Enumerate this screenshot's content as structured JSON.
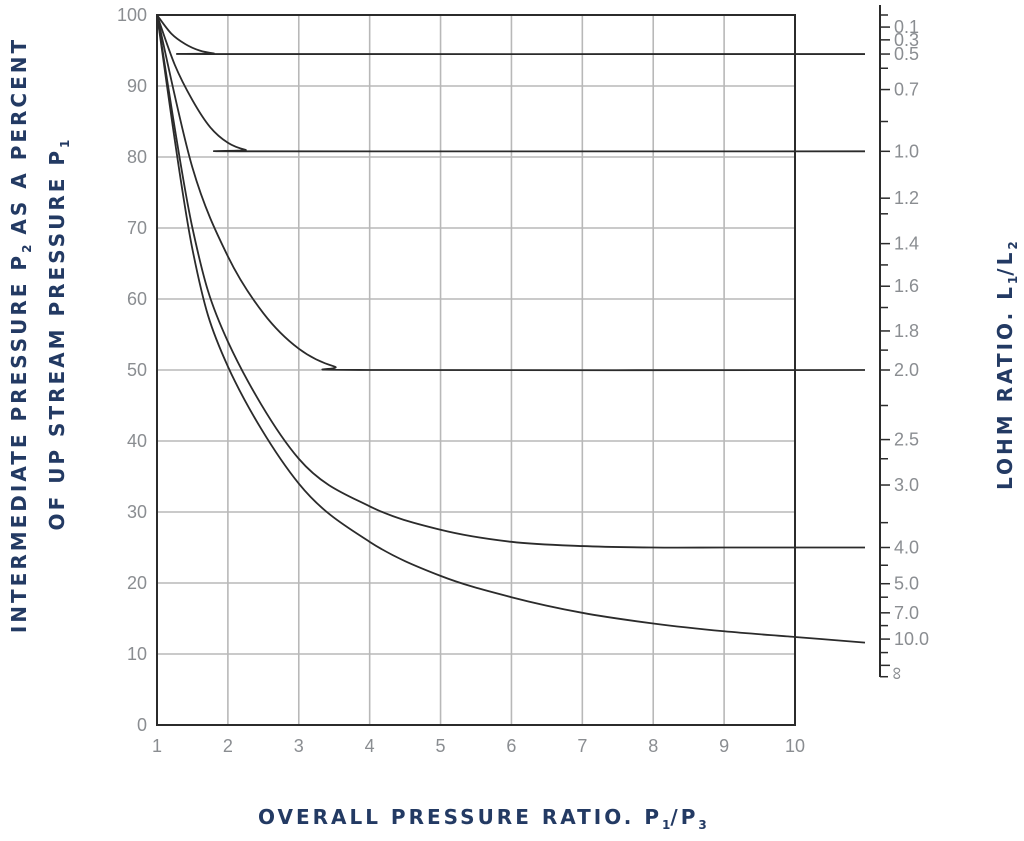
{
  "chart_data": {
    "type": "line",
    "x_ticks": [
      "1",
      "2",
      "3",
      "4",
      "5",
      "6",
      "7",
      "8",
      "9",
      "10"
    ],
    "y_ticks": [
      "0",
      "10",
      "20",
      "30",
      "40",
      "50",
      "60",
      "70",
      "80",
      "90",
      "100"
    ],
    "xlim": [
      1,
      10
    ],
    "ylim": [
      0,
      100
    ],
    "grid": true,
    "xlabel": {
      "main": "OVERALL PRESSURE RATIO. P",
      "s1": "1",
      "mid": "/P",
      "s2": "3"
    },
    "ylabel": {
      "line1_a": "INTERMEDIATE PRESSURE P",
      "line1_s": "2",
      "line1_b": " AS A PERCENT",
      "line2_a": "OF UP STREAM PRESSURE P",
      "line2_s": "1"
    },
    "y2label": {
      "main": "LOHM RATIO. L",
      "s1": "1",
      "mid": "/L",
      "s2": "2"
    },
    "right_axis_labels": [
      {
        "label": "0.1",
        "y": 98.3
      },
      {
        "label": "0.3",
        "y": 96.5
      },
      {
        "label": "0.5",
        "y": 94.5
      },
      {
        "label": "0.7",
        "y": 89.5
      },
      {
        "label": "1.0",
        "y": 80.8
      },
      {
        "label": "1.2",
        "y": 74.2
      },
      {
        "label": "1.4",
        "y": 67.8
      },
      {
        "label": "1.6",
        "y": 61.8
      },
      {
        "label": "1.8",
        "y": 55.5
      },
      {
        "label": "2.0",
        "y": 50
      },
      {
        "label": "2.5",
        "y": 40.2
      },
      {
        "label": "3.0",
        "y": 33.8
      },
      {
        "label": "4.0",
        "y": 25
      },
      {
        "label": "5.0",
        "y": 19.9
      },
      {
        "label": "7.0",
        "y": 15.8
      },
      {
        "label": "10.0",
        "y": 12.1
      },
      {
        "label": "∞",
        "y": 8.4
      }
    ],
    "right_axis_minor_ticks": [
      100,
      92.5,
      85,
      72,
      64.8,
      58.8,
      52.8,
      45,
      37.5,
      28.5,
      22.5,
      18,
      14,
      10.2,
      6.8
    ],
    "series": [
      {
        "lohm_ratio": "0.5",
        "x": [
          1,
          1.2,
          1.4,
          1.6,
          1.8,
          2,
          11
        ],
        "y": [
          100,
          97.4,
          95.9,
          95.0,
          94.6,
          94.5,
          94.5
        ]
      },
      {
        "lohm_ratio": "1.0",
        "x": [
          1,
          1.25,
          1.5,
          1.75,
          2,
          2.25,
          2.5,
          11
        ],
        "y": [
          100,
          93.0,
          88.0,
          84.2,
          82.0,
          81.0,
          80.8,
          80.8
        ]
      },
      {
        "lohm_ratio": "2.0",
        "x": [
          1,
          1.5,
          2,
          2.5,
          3,
          3.5,
          4,
          11
        ],
        "y": [
          100,
          78.5,
          66.0,
          58.0,
          53.0,
          50.5,
          50.0,
          50.0
        ]
      },
      {
        "lohm_ratio": "4.0",
        "x": [
          1,
          1.5,
          2,
          3,
          4,
          5,
          6,
          7,
          8,
          9,
          10,
          11
        ],
        "y": [
          100,
          70.0,
          54.0,
          37.5,
          30.8,
          27.5,
          25.8,
          25.2,
          25.0,
          25.0,
          25.0,
          25.0
        ]
      },
      {
        "lohm_ratio": "10.0",
        "x": [
          1,
          1.5,
          2,
          3,
          4,
          5,
          6,
          7,
          8,
          9,
          10,
          11
        ],
        "y": [
          100,
          67.0,
          50.5,
          34.0,
          25.8,
          21.0,
          18.0,
          15.8,
          14.3,
          13.2,
          12.4,
          11.6
        ]
      }
    ]
  }
}
